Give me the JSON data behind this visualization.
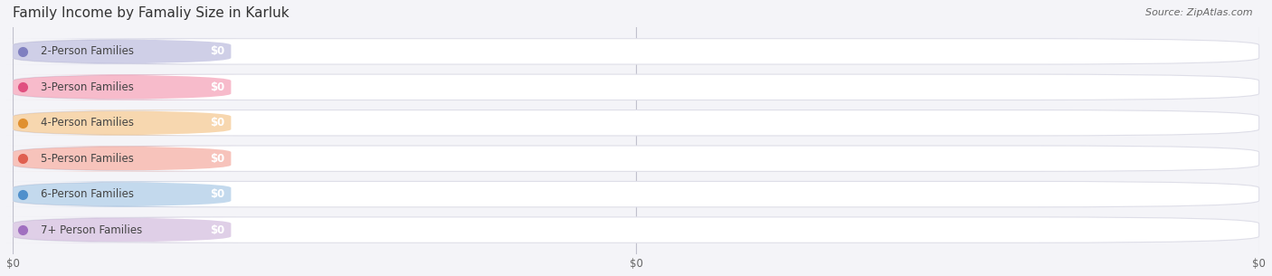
{
  "title": "Family Income by Famaliy Size in Karluk",
  "source": "Source: ZipAtlas.com",
  "categories": [
    "2-Person Families",
    "3-Person Families",
    "4-Person Families",
    "5-Person Families",
    "6-Person Families",
    "7+ Person Families"
  ],
  "values": [
    0,
    0,
    0,
    0,
    0,
    0
  ],
  "bar_colors": [
    "#a0a0d0",
    "#f07898",
    "#f0b060",
    "#f08878",
    "#88b4dc",
    "#c0a0d0"
  ],
  "dot_colors": [
    "#8080c0",
    "#e05080",
    "#e09030",
    "#e06050",
    "#5090cc",
    "#a070c0"
  ],
  "background_color": "#f4f4f8",
  "bar_bg_color": "#ffffff",
  "bar_row_bg": "#ebebf0",
  "title_fontsize": 11,
  "label_fontsize": 8.5,
  "value_fontsize": 8.5,
  "source_fontsize": 8
}
